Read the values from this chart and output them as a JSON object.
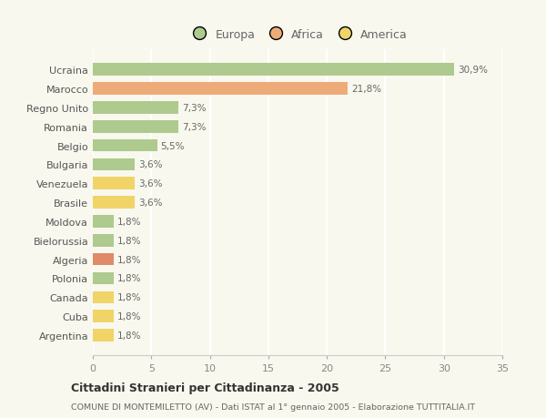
{
  "categories": [
    "Ucraina",
    "Marocco",
    "Regno Unito",
    "Romania",
    "Belgio",
    "Bulgaria",
    "Venezuela",
    "Brasile",
    "Moldova",
    "Bielorussia",
    "Algeria",
    "Polonia",
    "Canada",
    "Cuba",
    "Argentina"
  ],
  "values": [
    30.9,
    21.8,
    7.3,
    7.3,
    5.5,
    3.6,
    3.6,
    3.6,
    1.8,
    1.8,
    1.8,
    1.8,
    1.8,
    1.8,
    1.8
  ],
  "labels": [
    "30,9%",
    "21,8%",
    "7,3%",
    "7,3%",
    "5,5%",
    "3,6%",
    "3,6%",
    "3,6%",
    "1,8%",
    "1,8%",
    "1,8%",
    "1,8%",
    "1,8%",
    "1,8%",
    "1,8%"
  ],
  "colors": [
    "#aeca8f",
    "#edab7a",
    "#aeca8f",
    "#aeca8f",
    "#aeca8f",
    "#aeca8f",
    "#f0d468",
    "#f0d468",
    "#aeca8f",
    "#aeca8f",
    "#e08a6a",
    "#aeca8f",
    "#f0d468",
    "#f0d468",
    "#f0d468"
  ],
  "legend_labels": [
    "Europa",
    "Africa",
    "America"
  ],
  "legend_colors": [
    "#aeca8f",
    "#edab7a",
    "#f0d468"
  ],
  "title": "Cittadini Stranieri per Cittadinanza - 2005",
  "subtitle": "COMUNE DI MONTEMILETTO (AV) - Dati ISTAT al 1° gennaio 2005 - Elaborazione TUTTITALIA.IT",
  "xlim": [
    0,
    35
  ],
  "xticks": [
    0,
    5,
    10,
    15,
    20,
    25,
    30,
    35
  ],
  "background_color": "#f8f8ee",
  "grid_color": "#ffffff",
  "bar_height": 0.65
}
